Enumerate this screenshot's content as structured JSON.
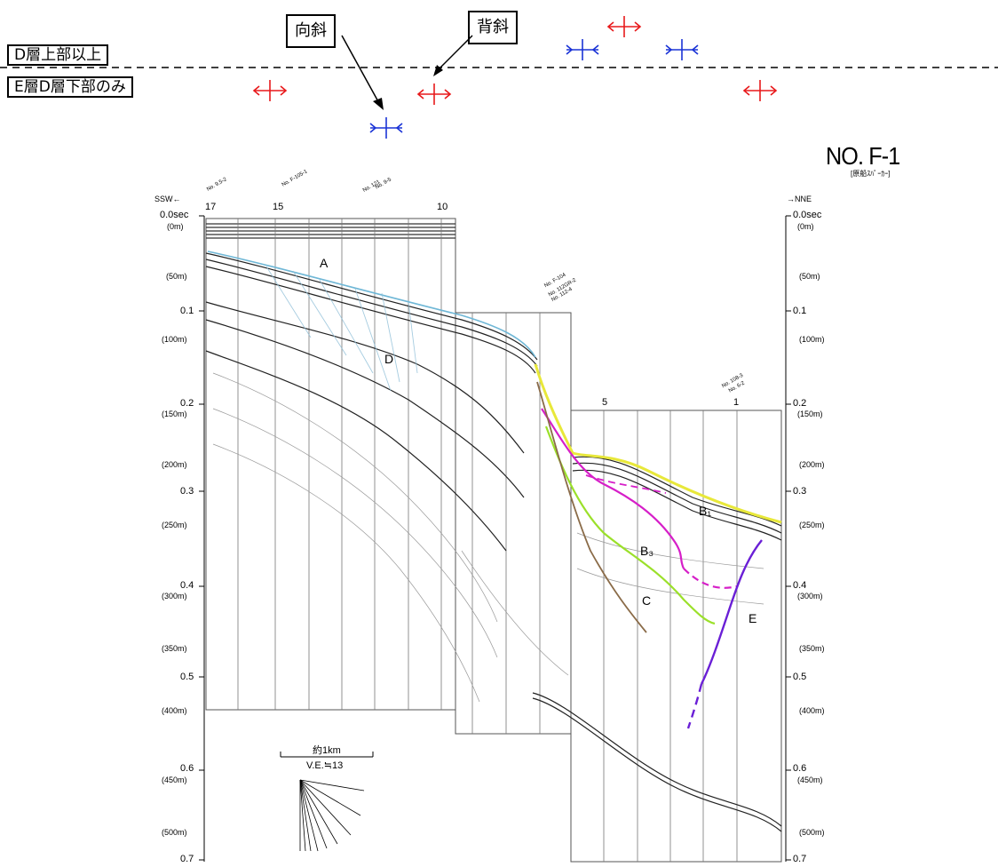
{
  "legend": {
    "upper_label": "D層上部以上",
    "lower_label": "E層D層下部のみ"
  },
  "callouts": {
    "syncline": "向斜",
    "anticline": "背斜"
  },
  "symbols": {
    "anticline_color": "#e8191b",
    "syncline_color": "#1a33d6"
  },
  "profile": {
    "title": "NO. F-1",
    "subtitle": "[原船ｽﾊﾟｰｶｰ]",
    "left_direction": "SSW←",
    "right_direction": "→NNE",
    "left_ticks": [
      "0.0sec",
      "(0m)",
      "(50m)",
      "0.1",
      "(100m)",
      "0.2",
      "(150m)",
      "(200m)",
      "0.3",
      "(250m)",
      "0.4",
      "(300m)",
      "(350m)",
      "0.5",
      "(400m)",
      "0.6",
      "(450m)",
      "(500m)",
      "0.7"
    ],
    "right_ticks": [
      "0.0sec",
      "(0m)",
      "(50m)",
      "0.1",
      "(100m)",
      "0.2",
      "(150m)",
      "(200m)",
      "0.3",
      "(250m)",
      "0.4",
      "(300m)",
      "(350m)",
      "0.5",
      "(400m)",
      "0.6",
      "(450m)",
      "(500m)",
      "0.7"
    ],
    "shotpoints_top": [
      "17",
      "15",
      "10"
    ],
    "shotpoints_right": [
      "5",
      "1"
    ],
    "well_labels": [
      "No. 9.5-2",
      "No. F-105-1",
      "No. 121",
      "No. 9-5",
      "No. F-104",
      "No. 112GR-2",
      "No. 112-4",
      "No. 108-3",
      "No. 6-2"
    ],
    "layer_labels": {
      "A": "A",
      "D": "D",
      "B1": "B₁",
      "B3": "B₃",
      "C": "C",
      "E": "E"
    },
    "scale_label": "約1km",
    "ve_label": "V.E.≒13"
  }
}
